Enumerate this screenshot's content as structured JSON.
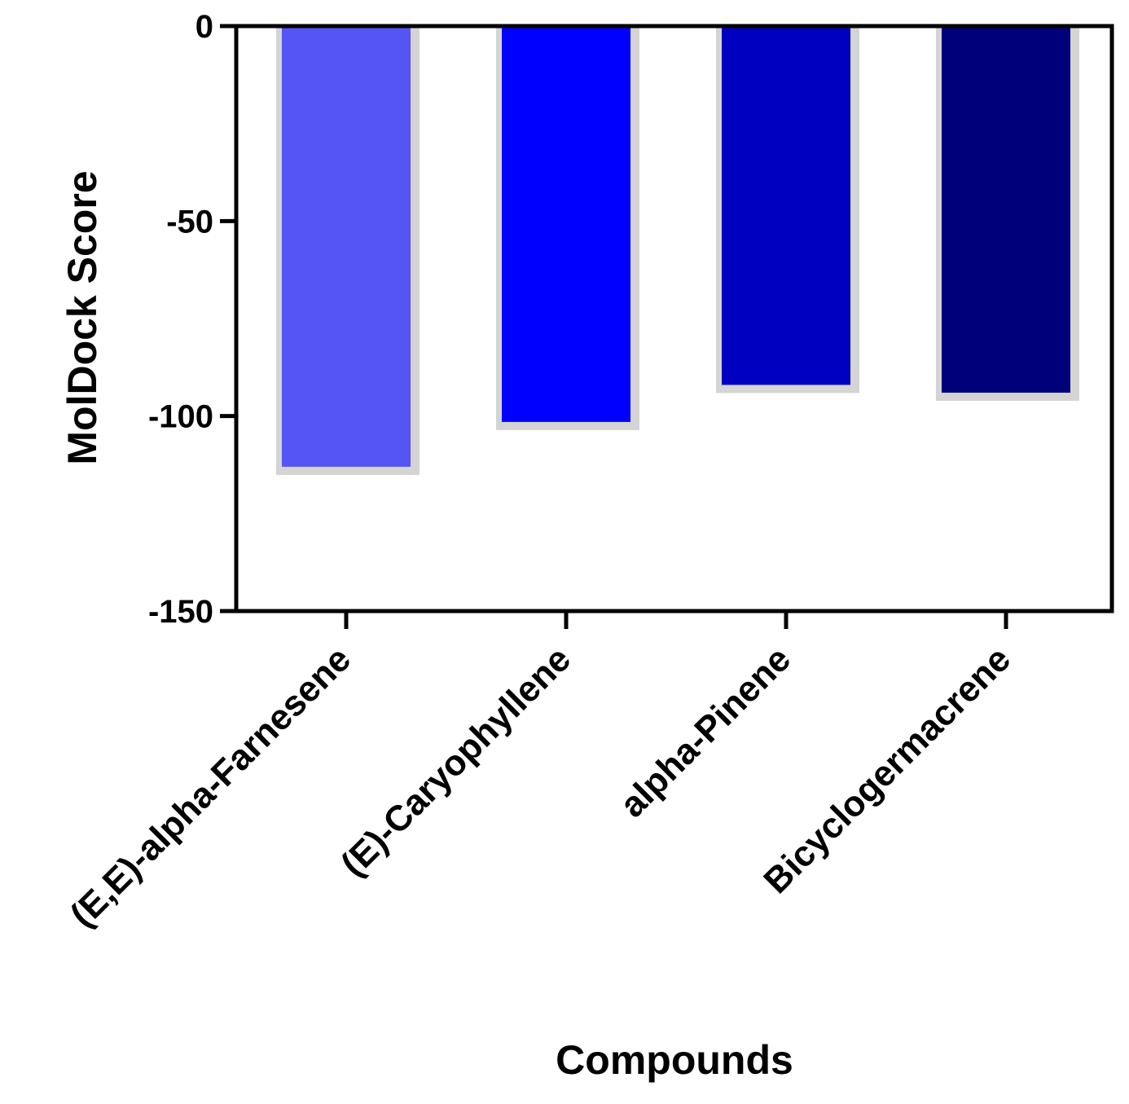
{
  "chart_data": {
    "type": "bar",
    "title": "",
    "xlabel": "Compounds",
    "ylabel": "MolDock Score",
    "categories": [
      "(E,E)-alpha-Farnesene",
      "(E)-Caryophyllene",
      "alpha-Pinene",
      "Bicyclogermacrene"
    ],
    "values": [
      -113,
      -101.5,
      -92,
      -94
    ],
    "ylim": [
      -150,
      0
    ],
    "yticks": [
      0,
      -50,
      -100,
      -150
    ],
    "ytick_labels": [
      "0",
      "-50",
      "-100",
      "-150"
    ],
    "colors": [
      "#5555f5",
      "#0000ff",
      "#0000c0",
      "#00007a"
    ],
    "shadow_color": "#d4d4d4",
    "grid": false,
    "legend": "none"
  }
}
